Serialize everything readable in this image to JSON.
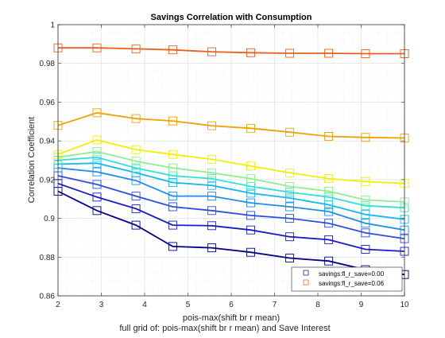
{
  "chart_data": {
    "type": "line",
    "title": "Savings Correlation with Consumption",
    "xlabel": "pois-max(shift br r mean)",
    "ylabel": "Correlation Coefficient",
    "caption": "full grid of: pois-max(shift br r mean) and Save Interest",
    "xlim": [
      2,
      10
    ],
    "ylim": [
      0.86,
      1
    ],
    "x_ticks": [
      "2",
      "3",
      "4",
      "5",
      "6",
      "7",
      "8",
      "9",
      "10"
    ],
    "y_ticks": [
      "0.86",
      "0.88",
      "0.9",
      "0.92",
      "0.94",
      "0.96",
      "0.98",
      "1"
    ],
    "grid": true,
    "minor_grid": true,
    "marker": "square",
    "legend_position": "bottom-right",
    "legend": [
      {
        "label": "savings:fl_r_save=0.00",
        "color": "#1f1fb0"
      },
      {
        "label": "savings:fl_r_save=0.06",
        "color": "#e8681c"
      }
    ],
    "x": [
      2.0,
      2.9,
      3.8,
      4.65,
      5.55,
      6.45,
      7.35,
      8.25,
      9.1,
      10.0
    ],
    "series": [
      {
        "color": "#00008b",
        "values": [
          0.914,
          0.904,
          0.8965,
          0.8855,
          0.8848,
          0.8825,
          0.8795,
          0.878,
          0.8735,
          0.871
        ]
      },
      {
        "color": "#1a1acd",
        "values": [
          0.918,
          0.911,
          0.905,
          0.8965,
          0.8962,
          0.894,
          0.8905,
          0.889,
          0.884,
          0.883
        ]
      },
      {
        "color": "#2a4fe0",
        "values": [
          0.922,
          0.9175,
          0.9115,
          0.906,
          0.904,
          0.9015,
          0.9,
          0.8975,
          0.8925,
          0.8895
        ]
      },
      {
        "color": "#1e8cf0",
        "values": [
          0.926,
          0.924,
          0.9195,
          0.9115,
          0.9115,
          0.908,
          0.906,
          0.9035,
          0.8975,
          0.894
        ]
      },
      {
        "color": "#12b8f0",
        "values": [
          0.928,
          0.9285,
          0.9235,
          0.9185,
          0.917,
          0.913,
          0.9105,
          0.907,
          0.902,
          0.8995
        ]
      },
      {
        "color": "#2ee0d8",
        "values": [
          0.93,
          0.9315,
          0.926,
          0.922,
          0.9205,
          0.9165,
          0.9135,
          0.911,
          0.9065,
          0.9055
        ]
      },
      {
        "color": "#8cf08c",
        "values": [
          0.9315,
          0.9345,
          0.9295,
          0.926,
          0.9235,
          0.9205,
          0.9165,
          0.914,
          0.9095,
          0.9085
        ]
      },
      {
        "color": "#f0f000",
        "values": [
          0.933,
          0.9405,
          0.9355,
          0.933,
          0.9305,
          0.927,
          0.9235,
          0.9205,
          0.919,
          0.918
        ]
      },
      {
        "color": "#f0a000",
        "values": [
          0.948,
          0.9545,
          0.9515,
          0.9503,
          0.9478,
          0.9465,
          0.9445,
          0.9423,
          0.9418,
          0.9415
        ]
      },
      {
        "color": "#e8601c",
        "values": [
          0.988,
          0.988,
          0.9875,
          0.987,
          0.986,
          0.9855,
          0.9852,
          0.9852,
          0.985,
          0.985
        ]
      }
    ]
  }
}
